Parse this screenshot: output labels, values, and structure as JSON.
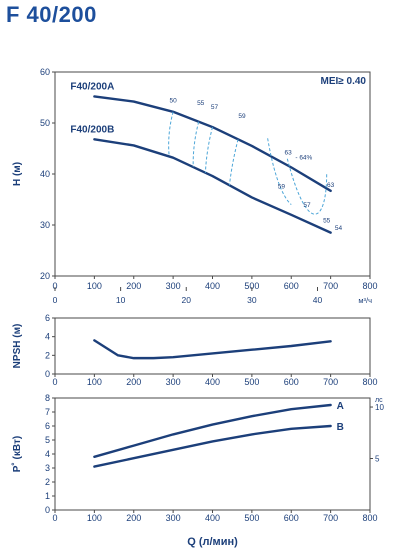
{
  "page_title": "F 40/200",
  "colors": {
    "title": "#1d4f9c",
    "curve": "#1c3f7a",
    "iso": "#4da6d8",
    "text": "#1c3f7a",
    "frame": "#4a4a4a"
  },
  "chart_data": [
    {
      "id": "head",
      "type": "line",
      "ylabel": "H (м)",
      "xlim": [
        0,
        800
      ],
      "ylim": [
        20,
        60
      ],
      "x_ticks": [
        0,
        100,
        200,
        300,
        400,
        500,
        600,
        700,
        800
      ],
      "y_ticks": [
        20,
        30,
        40,
        50,
        60
      ],
      "x2_unit": "м³/ч",
      "x2_ticks": [
        0,
        10,
        20,
        30,
        40
      ],
      "annotation": "MEI≥ 0.40",
      "series": [
        {
          "name": "F40/200A",
          "x": [
            100,
            200,
            300,
            400,
            500,
            600,
            700
          ],
          "y": [
            55.2,
            54.2,
            52.2,
            49.2,
            45.5,
            41.3,
            36.7
          ]
        },
        {
          "name": "F40/200B",
          "x": [
            100,
            200,
            300,
            400,
            500,
            600,
            700
          ],
          "y": [
            46.8,
            45.6,
            43.2,
            39.6,
            35.4,
            32.0,
            28.5
          ]
        }
      ],
      "efficiency_labels": [
        {
          "text": "50",
          "x": 300,
          "y": 54.0
        },
        {
          "text": "55",
          "x": 370,
          "y": 53.5
        },
        {
          "text": "57",
          "x": 405,
          "y": 52.7
        },
        {
          "text": "59",
          "x": 475,
          "y": 51.0
        },
        {
          "text": "63",
          "x": 592,
          "y": 43.8
        },
        {
          "text": "- 64%",
          "x": 632,
          "y": 42.8
        },
        {
          "text": "63",
          "x": 700,
          "y": 37.5
        },
        {
          "text": "59",
          "x": 575,
          "y": 37.2
        },
        {
          "text": "57",
          "x": 640,
          "y": 33.5
        },
        {
          "text": "55",
          "x": 690,
          "y": 30.5
        },
        {
          "text": "54",
          "x": 720,
          "y": 29.0
        }
      ]
    },
    {
      "id": "npsh",
      "type": "line",
      "ylabel": "NPSH (м)",
      "xlim": [
        0,
        800
      ],
      "ylim": [
        0,
        6
      ],
      "x_ticks": [
        0,
        100,
        200,
        300,
        400,
        500,
        600,
        700,
        800
      ],
      "y_ticks": [
        0,
        2,
        4,
        6
      ],
      "series": [
        {
          "name": "",
          "x": [
            100,
            130,
            160,
            200,
            250,
            300,
            400,
            500,
            600,
            700
          ],
          "y": [
            3.6,
            2.8,
            2.0,
            1.7,
            1.7,
            1.8,
            2.2,
            2.6,
            3.0,
            3.5
          ]
        }
      ]
    },
    {
      "id": "power",
      "type": "line",
      "ylabel": "P˚ (кВт)",
      "xlabel": "Q (л/мин)",
      "xlim": [
        0,
        800
      ],
      "ylim": [
        0,
        8
      ],
      "x_ticks": [
        0,
        100,
        200,
        300,
        400,
        500,
        600,
        700,
        800
      ],
      "y_ticks": [
        0,
        1,
        2,
        3,
        4,
        5,
        6,
        7,
        8
      ],
      "y2_unit": "лс",
      "y2_ticks": [
        5,
        10
      ],
      "series": [
        {
          "name": "A",
          "x": [
            100,
            200,
            300,
            400,
            500,
            600,
            700
          ],
          "y": [
            3.8,
            4.6,
            5.4,
            6.1,
            6.7,
            7.2,
            7.5
          ]
        },
        {
          "name": "B",
          "x": [
            100,
            200,
            300,
            400,
            500,
            600,
            700
          ],
          "y": [
            3.1,
            3.7,
            4.3,
            4.9,
            5.4,
            5.8,
            6.0
          ]
        }
      ]
    }
  ]
}
